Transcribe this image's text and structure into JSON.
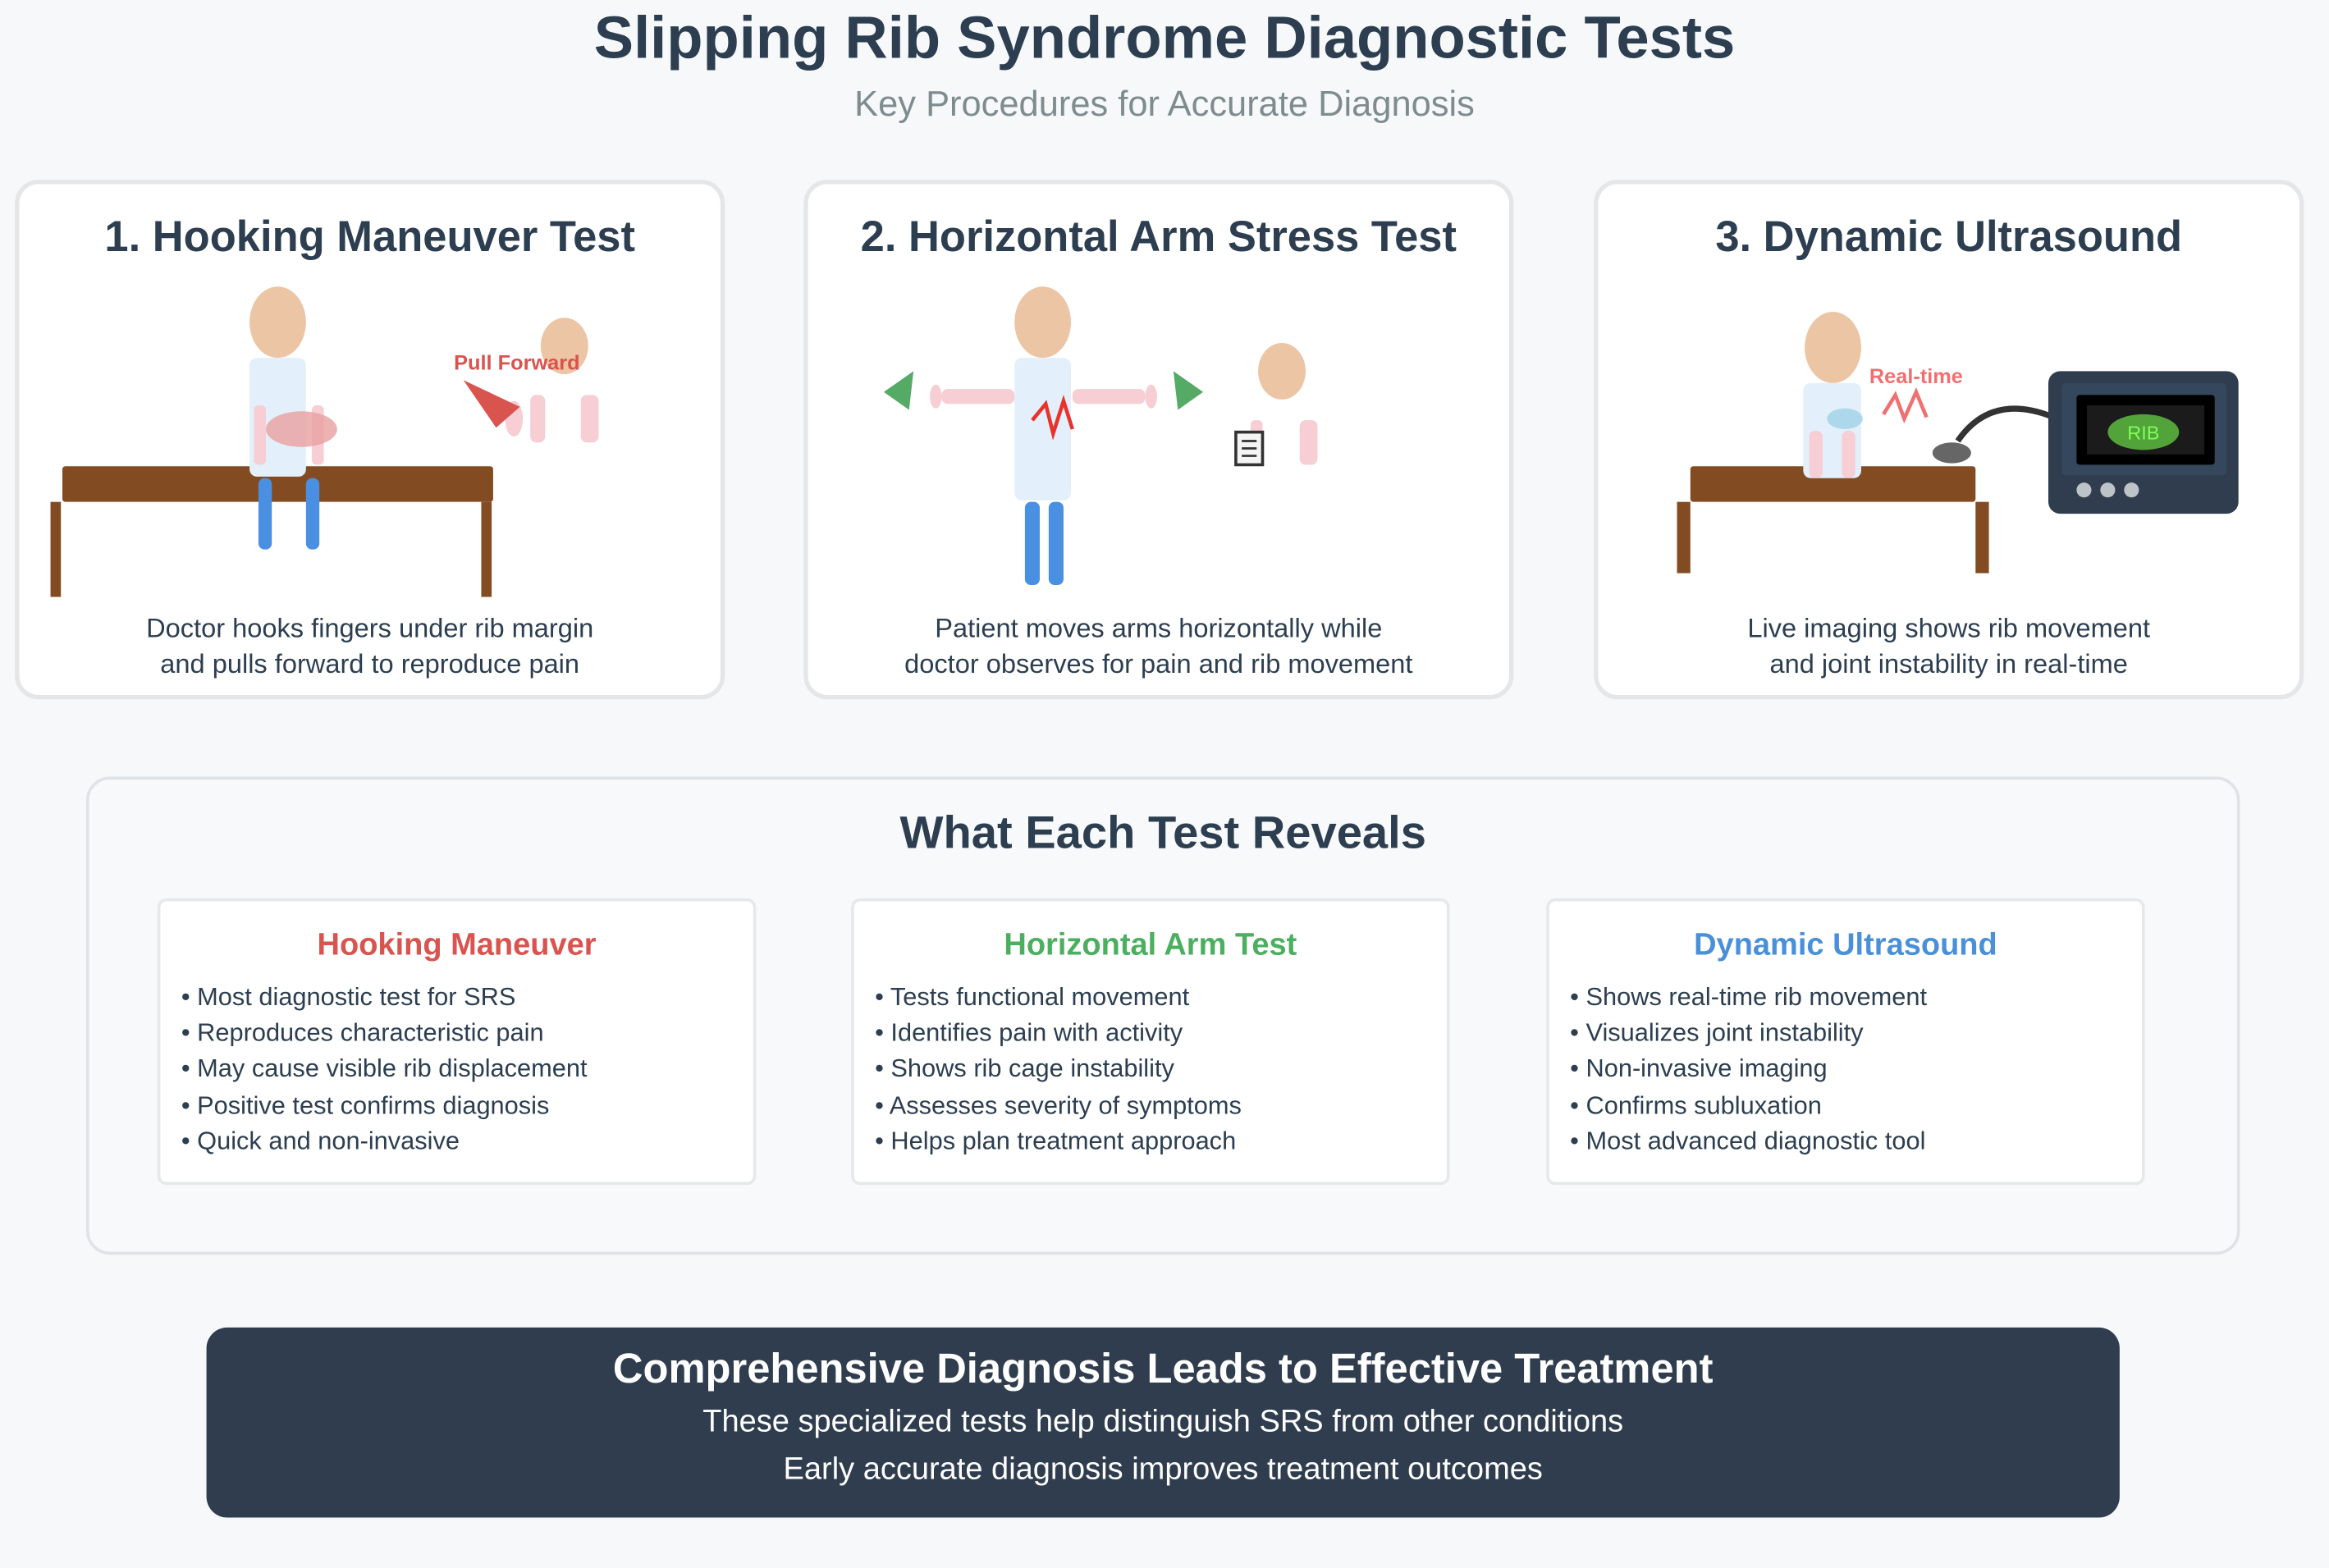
{
  "header": {
    "title": "Slipping Rib Syndrome Diagnostic Tests",
    "subtitle": "Key Procedures for Accurate Diagnosis"
  },
  "cards": [
    {
      "title": "1. Hooking Maneuver Test",
      "desc_line1": "Doctor hooks fingers under rib margin",
      "desc_line2": "and pulls forward to reproduce pain",
      "label": "Pull Forward"
    },
    {
      "title": "2. Horizontal Arm Stress Test",
      "desc_line1": "Patient moves arms horizontally while",
      "desc_line2": "doctor observes for pain and rib movement"
    },
    {
      "title": "3. Dynamic Ultrasound",
      "desc_line1": "Live imaging shows rib movement",
      "desc_line2": "and joint instability in real-time",
      "label": "Real-time",
      "screen_label": "RIB"
    }
  ],
  "summary": {
    "title": "What Each Test Reveals",
    "boxes": [
      {
        "title": "Hooking Maneuver",
        "color": "#d9534f",
        "items": [
          "• Most diagnostic test for SRS",
          "• Reproduces characteristic pain",
          "• May cause visible rib displacement",
          "• Positive test confirms diagnosis",
          "• Quick and non-invasive"
        ]
      },
      {
        "title": "Horizontal Arm Test",
        "color": "#4caf60",
        "items": [
          "• Tests functional movement",
          "• Identifies pain with activity",
          "• Shows rib cage instability",
          "• Assesses severity of symptoms",
          "• Helps plan treatment approach"
        ]
      },
      {
        "title": "Dynamic Ultrasound",
        "color": "#4a90d9",
        "items": [
          "• Shows real-time rib movement",
          "• Visualizes joint instability",
          "• Non-invasive imaging",
          "• Confirms subluxation",
          "• Most advanced diagnostic tool"
        ]
      }
    ]
  },
  "banner": {
    "title": "Comprehensive Diagnosis Leads to Effective Treatment",
    "line1": "These specialized tests help distinguish SRS from other conditions",
    "line2": "Early accurate diagnosis improves treatment outcomes"
  },
  "colors": {
    "dark": "#2c3e50",
    "skin": "#ecc5a5",
    "shirt": "#e3f0fb",
    "pants": "#4a90e2",
    "table": "#834b22"
  }
}
